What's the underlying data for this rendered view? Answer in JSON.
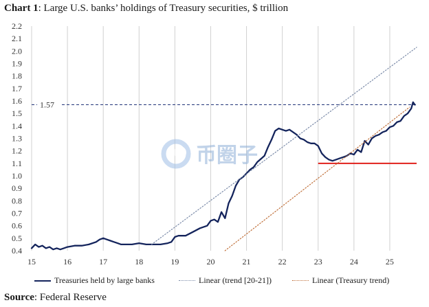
{
  "title": {
    "label": "Chart 1",
    "text": ": Large U.S. banks’ holdings of Treasury securities, $ trillion"
  },
  "source": {
    "label": "Source",
    "text": ": Federal Reserve"
  },
  "watermark": {
    "text": "币圈子"
  },
  "colors": {
    "treasuries": "#14245c",
    "trend_20_21": "#7a8aa8",
    "treasury_trend": "#c0703a",
    "reference_line": "#2e3f80",
    "horizontal_marker": "#e0201b",
    "grid": "#d0d0d0"
  },
  "chart_data": {
    "type": "line",
    "title": "Large U.S. banks’ holdings of Treasury securities, $ trillion",
    "xlabel": "",
    "ylabel": "",
    "xlim": [
      15,
      25.75
    ],
    "ylim": [
      0.4,
      2.2
    ],
    "x_ticks": [
      "15",
      "16",
      "17",
      "18",
      "19",
      "20",
      "21",
      "22",
      "23",
      "24",
      "25"
    ],
    "y_ticks": [
      "0.4",
      "0.5",
      "0.6",
      "0.7",
      "0.8",
      "0.9",
      "1.0",
      "1.1",
      "1.2",
      "1.3",
      "1.4",
      "1.5",
      "1.6",
      "1.7",
      "1.8",
      "1.9",
      "2.0",
      "2.1",
      "2.2"
    ],
    "grid": "vertical",
    "legend_position": "bottom",
    "series": [
      {
        "name": "Treasuries held by large banks",
        "style": "solid",
        "x": [
          15.0,
          15.1,
          15.2,
          15.3,
          15.4,
          15.5,
          15.6,
          15.7,
          15.8,
          15.9,
          16.0,
          16.2,
          16.4,
          16.6,
          16.8,
          16.9,
          17.0,
          17.1,
          17.2,
          17.3,
          17.4,
          17.5,
          17.6,
          17.8,
          18.0,
          18.2,
          18.4,
          18.6,
          18.8,
          18.9,
          19.0,
          19.1,
          19.3,
          19.5,
          19.7,
          19.9,
          20.0,
          20.1,
          20.2,
          20.3,
          20.4,
          20.5,
          20.6,
          20.7,
          20.8,
          20.9,
          21.0,
          21.1,
          21.2,
          21.3,
          21.5,
          21.6,
          21.7,
          21.8,
          21.9,
          22.0,
          22.1,
          22.2,
          22.3,
          22.4,
          22.5,
          22.6,
          22.7,
          22.8,
          22.9,
          23.0,
          23.1,
          23.2,
          23.3,
          23.4,
          23.5,
          23.6,
          23.7,
          23.8,
          23.9,
          24.0,
          24.1,
          24.2,
          24.3,
          24.4,
          24.5,
          24.6,
          24.7,
          24.8,
          24.9,
          25.0,
          25.1,
          25.2,
          25.3,
          25.4,
          25.5,
          25.6,
          25.65,
          25.7
        ],
        "values": [
          0.42,
          0.45,
          0.43,
          0.44,
          0.42,
          0.43,
          0.41,
          0.42,
          0.41,
          0.42,
          0.43,
          0.44,
          0.44,
          0.45,
          0.47,
          0.49,
          0.5,
          0.49,
          0.48,
          0.47,
          0.46,
          0.45,
          0.45,
          0.45,
          0.46,
          0.45,
          0.45,
          0.45,
          0.46,
          0.47,
          0.51,
          0.52,
          0.52,
          0.55,
          0.58,
          0.6,
          0.64,
          0.65,
          0.63,
          0.71,
          0.66,
          0.78,
          0.84,
          0.92,
          0.97,
          0.99,
          1.02,
          1.05,
          1.07,
          1.11,
          1.16,
          1.23,
          1.29,
          1.36,
          1.38,
          1.37,
          1.36,
          1.37,
          1.35,
          1.33,
          1.3,
          1.29,
          1.27,
          1.26,
          1.26,
          1.24,
          1.18,
          1.15,
          1.13,
          1.12,
          1.13,
          1.14,
          1.15,
          1.16,
          1.18,
          1.17,
          1.21,
          1.19,
          1.28,
          1.25,
          1.3,
          1.32,
          1.33,
          1.35,
          1.36,
          1.39,
          1.4,
          1.43,
          1.44,
          1.48,
          1.5,
          1.54,
          1.59,
          1.57
        ]
      },
      {
        "name": "Linear (trend [20-21])",
        "style": "dotted",
        "x": [
          18.35,
          25.75
        ],
        "values": [
          0.45,
          2.03
        ]
      },
      {
        "name": "Linear (Treasury trend)",
        "style": "dotted",
        "x": [
          20.4,
          25.55
        ],
        "values": [
          0.4,
          1.55
        ]
      }
    ],
    "reference_lines": [
      {
        "label": "1.57",
        "y": 1.57,
        "x_start": 15,
        "x_end": 25.75,
        "style": "dashed"
      },
      {
        "label": "",
        "y": 1.1,
        "x_start": 23.0,
        "x_end": 25.75,
        "style": "solid"
      }
    ]
  }
}
